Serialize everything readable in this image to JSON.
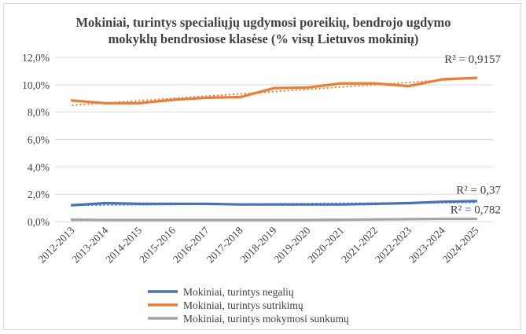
{
  "chart_data": {
    "type": "line",
    "title_lines": [
      "Mokiniai, turintys specialiųjų ugdymosi poreikių, bendrojo ugdymo",
      "mokyklų bendrosiose klasėse (% visų Lietuvos mokinių)"
    ],
    "categories": [
      "2012-2013",
      "2013-2014",
      "2014-2015",
      "2015-2016",
      "2016-2017",
      "2017-2018",
      "2018-2019",
      "2019-2020",
      "2020-2021",
      "2021-2022",
      "2022-2023",
      "2023-2024",
      "2024-2025"
    ],
    "y_ticks": [
      "0,0%",
      "2,0%",
      "4,0%",
      "6,0%",
      "8,0%",
      "10,0%",
      "12,0%"
    ],
    "ylim": [
      0,
      12
    ],
    "y_step": 2,
    "grid": true,
    "legend_position": "bottom-left",
    "series": [
      {
        "name": "Mokiniai, turintys negalių",
        "color": "#4472c4",
        "values": [
          1.2,
          1.35,
          1.3,
          1.3,
          1.3,
          1.25,
          1.25,
          1.25,
          1.25,
          1.3,
          1.35,
          1.45,
          1.5
        ],
        "trendline": {
          "r2": "R² = 0,37",
          "start": 1.2,
          "end": 1.4
        }
      },
      {
        "name": "Mokiniai, turintys sutrikimų",
        "color": "#ed7d31",
        "values": [
          8.85,
          8.65,
          8.65,
          8.9,
          9.05,
          9.1,
          9.75,
          9.8,
          10.1,
          10.1,
          9.9,
          10.4,
          10.5
        ],
        "trendline": {
          "r2": "R² = 0,9157",
          "start": 8.5,
          "end": 10.5
        }
      },
      {
        "name": "Mokiniai, turintys mokymosi sunkumų",
        "color": "#a5a5a5",
        "values": [
          0.15,
          0.12,
          0.12,
          0.12,
          0.12,
          0.12,
          0.12,
          0.12,
          0.14,
          0.16,
          0.18,
          0.2,
          0.2
        ],
        "trendline": {
          "r2": "R² = 0,782",
          "start": 0.08,
          "end": 0.2
        }
      }
    ]
  }
}
